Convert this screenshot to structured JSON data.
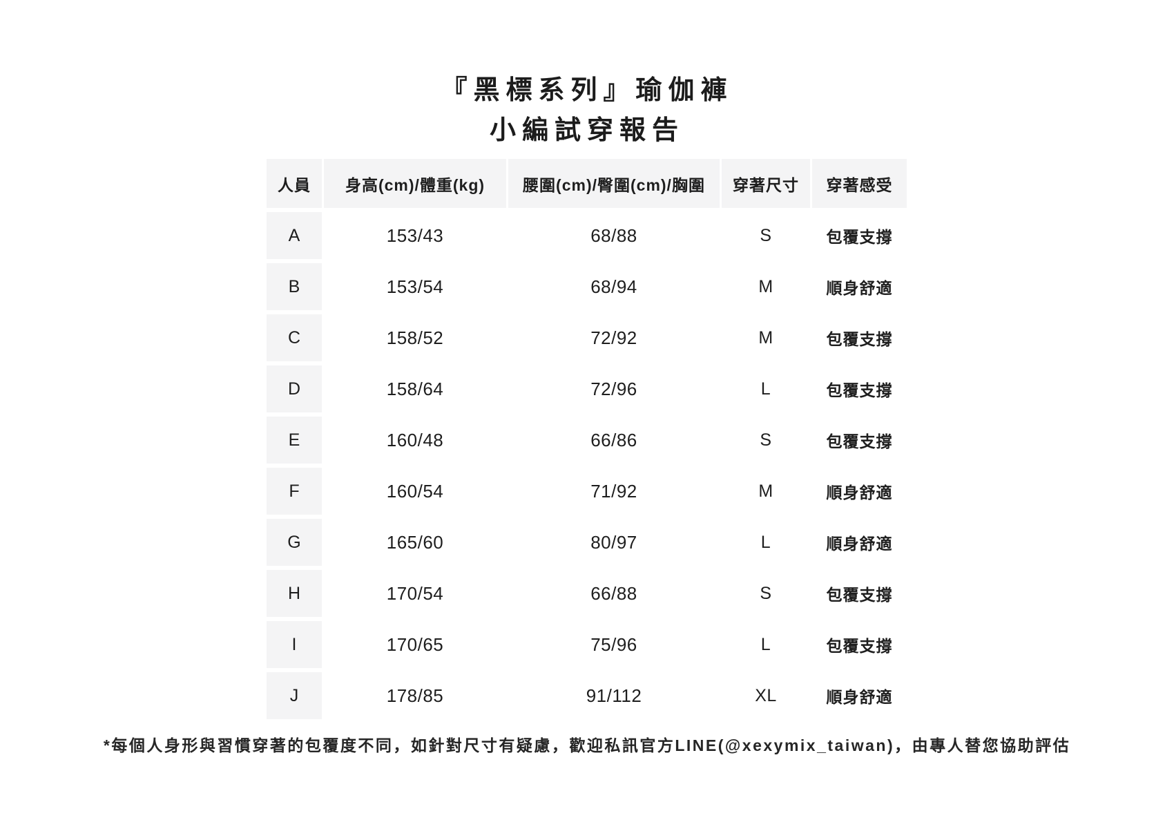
{
  "title": {
    "line1": "『黑標系列』瑜伽褲",
    "line2": "小編試穿報告"
  },
  "table": {
    "headers": [
      "人員",
      "身高(cm)/體重(kg)",
      "腰圍(cm)/臀圍(cm)/胸圍",
      "穿著尺寸",
      "穿著感受"
    ],
    "rows": [
      {
        "person": "A",
        "height_weight": "153/43",
        "waist_hip": "68/88",
        "size": "S",
        "feel": "包覆支撐"
      },
      {
        "person": "B",
        "height_weight": "153/54",
        "waist_hip": "68/94",
        "size": "M",
        "feel": "順身舒適"
      },
      {
        "person": "C",
        "height_weight": "158/52",
        "waist_hip": "72/92",
        "size": "M",
        "feel": "包覆支撐"
      },
      {
        "person": "D",
        "height_weight": "158/64",
        "waist_hip": "72/96",
        "size": "L",
        "feel": "包覆支撐"
      },
      {
        "person": "E",
        "height_weight": "160/48",
        "waist_hip": "66/86",
        "size": "S",
        "feel": "包覆支撐"
      },
      {
        "person": "F",
        "height_weight": "160/54",
        "waist_hip": "71/92",
        "size": "M",
        "feel": "順身舒適"
      },
      {
        "person": "G",
        "height_weight": "165/60",
        "waist_hip": "80/97",
        "size": "L",
        "feel": "順身舒適"
      },
      {
        "person": "H",
        "height_weight": "170/54",
        "waist_hip": "66/88",
        "size": "S",
        "feel": "包覆支撐"
      },
      {
        "person": "I",
        "height_weight": "170/65",
        "waist_hip": "75/96",
        "size": "L",
        "feel": "包覆支撐"
      },
      {
        "person": "J",
        "height_weight": "178/85",
        "waist_hip": "91/112",
        "size": "XL",
        "feel": "順身舒適"
      }
    ]
  },
  "footnote": "*每個人身形與習慣穿著的包覆度不同，如針對尺寸有疑慮，歡迎私訊官方LINE(@xexymix_taiwan)，由專人替您協助評估",
  "colors": {
    "cell_gray": "#f4f4f5",
    "text": "#1e1e1e",
    "background": "#ffffff"
  }
}
